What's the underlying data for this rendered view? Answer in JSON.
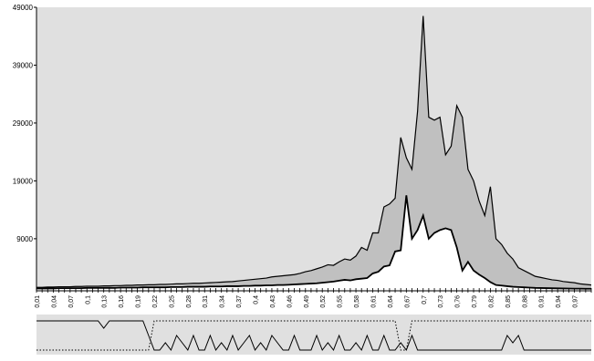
{
  "chart_data": {
    "type": "area",
    "title": "",
    "xlabel": "",
    "ylabel": "",
    "ylim": [
      0,
      49000
    ],
    "yticks": [
      49000,
      39000,
      29000,
      19000,
      9000
    ],
    "yticks_text": [
      "49000",
      "39000",
      "29000",
      "19000",
      "9000"
    ],
    "x_tick_labels": [
      "0,01",
      "0,04",
      "0,07",
      "0,1",
      "0,13",
      "0,16",
      "0,19",
      "0,22",
      "0,25",
      "0,28",
      "0,31",
      "0,34",
      "0,37",
      "0,4",
      "0,43",
      "0,46",
      "0,49",
      "0,52",
      "0,55",
      "0,58",
      "0,61",
      "0,64",
      "0,67",
      "0,7",
      "0,73",
      "0,76",
      "0,79",
      "0,82",
      "0,85",
      "0,88",
      "0,91",
      "0,94",
      "0,97"
    ],
    "colors": {
      "plot_bg": "#e0e0e0",
      "band_fill": "#c0c0c0",
      "inner_fill": "#ffffff",
      "line": "#000000"
    },
    "x": [
      0.01,
      0.02,
      0.03,
      0.04,
      0.05,
      0.06,
      0.07,
      0.08,
      0.09,
      0.1,
      0.11,
      0.12,
      0.13,
      0.14,
      0.15,
      0.16,
      0.17,
      0.18,
      0.19,
      0.2,
      0.21,
      0.22,
      0.23,
      0.24,
      0.25,
      0.26,
      0.27,
      0.28,
      0.29,
      0.3,
      0.31,
      0.32,
      0.33,
      0.34,
      0.35,
      0.36,
      0.37,
      0.38,
      0.39,
      0.4,
      0.41,
      0.42,
      0.43,
      0.44,
      0.45,
      0.46,
      0.47,
      0.48,
      0.49,
      0.5,
      0.51,
      0.52,
      0.53,
      0.54,
      0.55,
      0.56,
      0.57,
      0.58,
      0.59,
      0.6,
      0.61,
      0.62,
      0.63,
      0.64,
      0.65,
      0.66,
      0.67,
      0.68,
      0.69,
      0.7,
      0.71,
      0.72,
      0.73,
      0.74,
      0.75,
      0.76,
      0.77,
      0.78,
      0.79,
      0.8,
      0.81,
      0.82,
      0.83,
      0.84,
      0.85,
      0.86,
      0.87,
      0.88,
      0.89,
      0.9,
      0.91,
      0.92,
      0.93,
      0.94,
      0.95,
      0.96,
      0.97,
      0.98,
      0.99,
      1.0
    ],
    "series": [
      {
        "values": [
          600,
          600,
          650,
          650,
          700,
          700,
          700,
          750,
          750,
          800,
          800,
          800,
          850,
          850,
          900,
          900,
          950,
          950,
          1000,
          1000,
          1050,
          1050,
          1100,
          1100,
          1150,
          1200,
          1200,
          1250,
          1300,
          1300,
          1350,
          1400,
          1450,
          1500,
          1550,
          1600,
          1700,
          1800,
          1900,
          2000,
          2100,
          2200,
          2400,
          2500,
          2600,
          2700,
          2800,
          3000,
          3300,
          3500,
          3800,
          4100,
          4500,
          4400,
          5000,
          5500,
          5300,
          6000,
          7500,
          7000,
          10000,
          10000,
          14500,
          15000,
          16000,
          26500,
          23000,
          21000,
          31000,
          47500,
          30000,
          29500,
          30000,
          23500,
          25000,
          32000,
          30000,
          21000,
          19000,
          15500,
          13000,
          18000,
          9000,
          8000,
          6500,
          5500,
          4000,
          3500,
          3000,
          2500,
          2300,
          2100,
          1900,
          1800,
          1600,
          1500,
          1400,
          1200,
          1100,
          1000
        ]
      },
      {
        "values": [
          400,
          400,
          400,
          400,
          450,
          450,
          450,
          450,
          450,
          500,
          500,
          500,
          500,
          500,
          500,
          550,
          550,
          550,
          550,
          600,
          600,
          600,
          600,
          600,
          650,
          650,
          650,
          700,
          700,
          700,
          700,
          750,
          750,
          750,
          800,
          800,
          800,
          850,
          850,
          900,
          900,
          950,
          950,
          1000,
          1000,
          1050,
          1100,
          1150,
          1200,
          1250,
          1300,
          1400,
          1500,
          1600,
          1750,
          1900,
          1800,
          2000,
          2100,
          2200,
          3000,
          3300,
          4200,
          4400,
          6800,
          7000,
          16500,
          9000,
          10500,
          13000,
          9000,
          10000,
          10500,
          10800,
          10500,
          7500,
          3500,
          5000,
          3500,
          2800,
          2200,
          1500,
          1000,
          900,
          800,
          700,
          650,
          600,
          550,
          500,
          480,
          460,
          440,
          420,
          400,
          390,
          380,
          370,
          360,
          350
        ]
      }
    ],
    "indicator_lines": {
      "solid": [
        1,
        1,
        1,
        1,
        1,
        1,
        1,
        1,
        1,
        1,
        1,
        1,
        0.5,
        1,
        1,
        1,
        1,
        1,
        1,
        1,
        0,
        -1,
        -1,
        -0.5,
        -1,
        0,
        -0.5,
        -1,
        0,
        -1,
        -1,
        0,
        -1,
        -0.5,
        -1,
        0,
        -1,
        -0.5,
        0,
        -1,
        -0.5,
        -1,
        0,
        -0.5,
        -1,
        -1,
        0,
        -1,
        -1,
        -1,
        0,
        -1,
        -0.5,
        -1,
        0,
        -1,
        -1,
        -0.5,
        -1,
        0,
        -1,
        -1,
        0,
        -1,
        -1,
        -0.5,
        -1,
        0,
        -1,
        -1,
        -1,
        -1,
        -1,
        -1,
        -1,
        -1,
        -1,
        -1,
        -1,
        -1,
        -1,
        -1,
        -1,
        -1,
        0,
        -0.5,
        0,
        -1,
        -1,
        -1,
        -1,
        -1,
        -1,
        -1,
        -1,
        -1,
        -1,
        -1,
        -1,
        -1
      ],
      "dotted": [
        -1,
        -1,
        -1,
        -1,
        -1,
        -1,
        -1,
        -1,
        -1,
        -1,
        -1,
        -1,
        -1,
        -1,
        -1,
        -1,
        -1,
        -1,
        -1,
        -1,
        -1,
        1,
        1,
        1,
        1,
        1,
        1,
        1,
        1,
        1,
        1,
        1,
        1,
        1,
        1,
        1,
        1,
        1,
        1,
        1,
        1,
        1,
        1,
        1,
        1,
        1,
        1,
        1,
        1,
        1,
        1,
        1,
        1,
        1,
        1,
        1,
        1,
        1,
        1,
        1,
        1,
        1,
        1,
        1,
        1,
        -1,
        -1,
        1,
        1,
        1,
        1,
        1,
        1,
        1,
        1,
        1,
        1,
        1,
        1,
        1,
        1,
        1,
        1,
        1,
        1,
        1,
        1,
        1,
        1,
        1,
        1,
        1,
        1,
        1,
        1,
        1,
        1,
        1,
        1,
        1
      ]
    }
  }
}
